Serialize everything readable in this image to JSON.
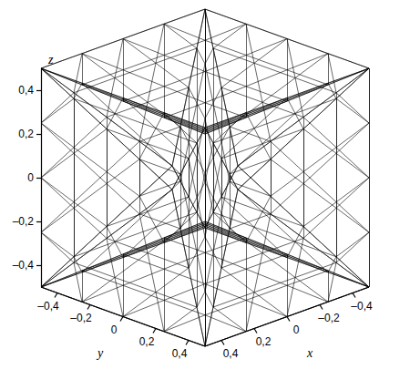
{
  "chart_data": {
    "type": "wireframe",
    "color": "#000000",
    "xlabel": "x",
    "ylabel": "y",
    "zlabel": "z",
    "xlim": [
      -0.5,
      0.5
    ],
    "ylim": [
      -0.5,
      0.5
    ],
    "zlim": [
      -0.5,
      0.5
    ],
    "xticks": [
      {
        "value": -0.4,
        "label": "–0,4"
      },
      {
        "value": -0.2,
        "label": "–0,2"
      },
      0,
      {
        "value": 0.2,
        "label": "0,2"
      },
      {
        "value": 0.4,
        "label": "0,4"
      }
    ],
    "yticks": [
      {
        "value": -0.4,
        "label": "–0,4"
      },
      {
        "value": -0.2,
        "label": "–0,2"
      },
      0,
      {
        "value": 0.2,
        "label": "0,2"
      },
      {
        "value": 0.4,
        "label": "0,4"
      }
    ],
    "zticks": [
      {
        "value": -0.4,
        "label": "–0,4"
      },
      {
        "value": -0.2,
        "label": "–0,2"
      },
      0,
      {
        "value": 0.2,
        "label": "0,2"
      },
      {
        "value": 0.4,
        "label": "0,4"
      }
    ],
    "vertices": [
      [
        -0.5,
        -0.5,
        -0.5
      ],
      [
        0.5,
        -0.5,
        -0.5
      ],
      [
        0.5,
        0.5,
        -0.5
      ],
      [
        -0.5,
        0.5,
        -0.5
      ],
      [
        -0.5,
        -0.5,
        0.5
      ],
      [
        0.5,
        -0.5,
        0.5
      ],
      [
        0.5,
        0.5,
        0.5
      ],
      [
        -0.5,
        0.5,
        0.5
      ],
      [
        0,
        0,
        -0.2
      ],
      [
        0,
        0,
        0.2
      ],
      [
        0,
        -0.2,
        0
      ],
      [
        0.2,
        0,
        0
      ],
      [
        0,
        0.2,
        0
      ],
      [
        -0.2,
        0,
        0
      ]
    ],
    "faces": [
      [
        0,
        1,
        8
      ],
      [
        1,
        2,
        8
      ],
      [
        2,
        3,
        8
      ],
      [
        3,
        0,
        8
      ],
      [
        4,
        5,
        9
      ],
      [
        5,
        6,
        9
      ],
      [
        6,
        7,
        9
      ],
      [
        7,
        4,
        9
      ],
      [
        0,
        1,
        10
      ],
      [
        1,
        5,
        10
      ],
      [
        5,
        4,
        10
      ],
      [
        4,
        0,
        10
      ],
      [
        1,
        2,
        11
      ],
      [
        2,
        6,
        11
      ],
      [
        6,
        5,
        11
      ],
      [
        5,
        1,
        11
      ],
      [
        2,
        3,
        12
      ],
      [
        3,
        7,
        12
      ],
      [
        7,
        6,
        12
      ],
      [
        6,
        2,
        12
      ],
      [
        3,
        0,
        13
      ],
      [
        0,
        4,
        13
      ],
      [
        4,
        7,
        13
      ],
      [
        7,
        3,
        13
      ]
    ]
  }
}
